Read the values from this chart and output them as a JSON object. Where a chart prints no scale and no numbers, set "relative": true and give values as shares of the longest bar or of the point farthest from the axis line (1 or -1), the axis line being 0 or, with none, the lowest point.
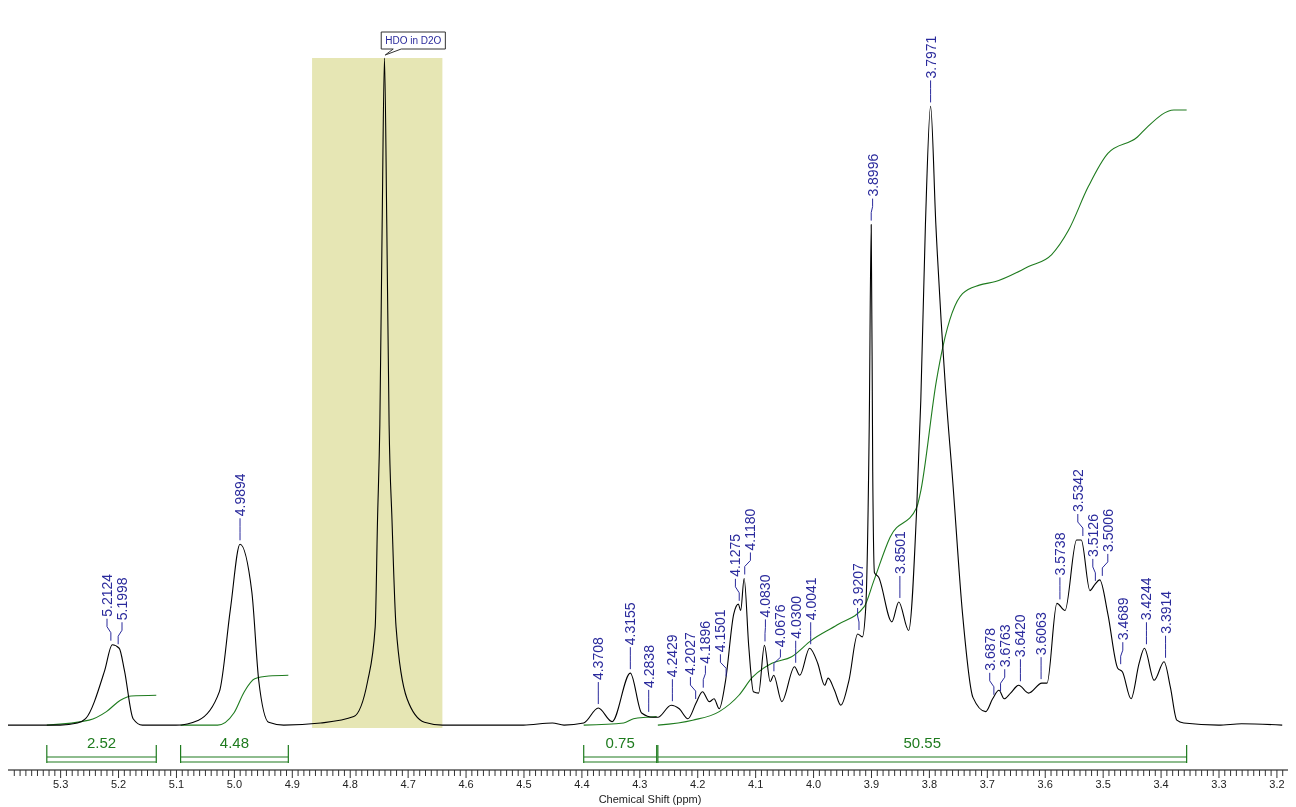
{
  "chart_data": {
    "type": "line",
    "relative": true,
    "xlabel": "Chemical Shift (ppm)",
    "xlim": [
      5.39,
      3.18
    ],
    "xticks": [
      {
        "value": 5.38,
        "label": null
      },
      {
        "value": 5.37,
        "label": null
      },
      {
        "value": 5.36,
        "label": null
      },
      {
        "value": 5.35,
        "label": null
      },
      {
        "value": 5.34,
        "label": null
      },
      {
        "value": 5.33,
        "label": null
      },
      {
        "value": 5.32,
        "label": null
      },
      {
        "value": 5.31,
        "label": null
      },
      5.3,
      {
        "value": 5.29,
        "label": null
      },
      {
        "value": 5.28,
        "label": null
      },
      {
        "value": 5.27,
        "label": null
      },
      {
        "value": 5.26,
        "label": null
      },
      {
        "value": 5.25,
        "label": null
      },
      {
        "value": 5.24,
        "label": null
      },
      {
        "value": 5.23,
        "label": null
      },
      {
        "value": 5.22,
        "label": null
      },
      {
        "value": 5.21,
        "label": null
      },
      5.2,
      {
        "value": 5.19,
        "label": null
      },
      {
        "value": 5.18,
        "label": null
      },
      {
        "value": 5.17,
        "label": null
      },
      {
        "value": 5.16,
        "label": null
      },
      {
        "value": 5.15,
        "label": null
      },
      {
        "value": 5.14,
        "label": null
      },
      {
        "value": 5.13,
        "label": null
      },
      {
        "value": 5.12,
        "label": null
      },
      {
        "value": 5.11,
        "label": null
      },
      5.1,
      {
        "value": 5.09,
        "label": null
      },
      {
        "value": 5.08,
        "label": null
      },
      {
        "value": 5.07,
        "label": null
      },
      {
        "value": 5.06,
        "label": null
      },
      {
        "value": 5.05,
        "label": null
      },
      {
        "value": 5.04,
        "label": null
      },
      {
        "value": 5.03,
        "label": null
      },
      {
        "value": 5.02,
        "label": null
      },
      {
        "value": 5.01,
        "label": null
      },
      {
        "value": 5.0,
        "label": "5.0"
      },
      {
        "value": 4.99,
        "label": null
      },
      {
        "value": 4.98,
        "label": null
      },
      {
        "value": 4.97,
        "label": null
      },
      {
        "value": 4.96,
        "label": null
      },
      {
        "value": 4.95,
        "label": null
      },
      {
        "value": 4.94,
        "label": null
      },
      {
        "value": 4.93,
        "label": null
      },
      {
        "value": 4.92,
        "label": null
      },
      {
        "value": 4.91,
        "label": null
      },
      4.9,
      {
        "value": 4.89,
        "label": null
      },
      {
        "value": 4.88,
        "label": null
      },
      {
        "value": 4.87,
        "label": null
      },
      {
        "value": 4.86,
        "label": null
      },
      {
        "value": 4.85,
        "label": null
      },
      {
        "value": 4.84,
        "label": null
      },
      {
        "value": 4.83,
        "label": null
      },
      {
        "value": 4.82,
        "label": null
      },
      {
        "value": 4.81,
        "label": null
      },
      4.8,
      {
        "value": 4.79,
        "label": null
      },
      {
        "value": 4.78,
        "label": null
      },
      {
        "value": 4.77,
        "label": null
      },
      {
        "value": 4.76,
        "label": null
      },
      {
        "value": 4.75,
        "label": null
      },
      {
        "value": 4.74,
        "label": null
      },
      {
        "value": 4.73,
        "label": null
      },
      {
        "value": 4.72,
        "label": null
      },
      {
        "value": 4.71,
        "label": null
      },
      4.7,
      {
        "value": 4.69,
        "label": null
      },
      {
        "value": 4.68,
        "label": null
      },
      {
        "value": 4.67,
        "label": null
      },
      {
        "value": 4.66,
        "label": null
      },
      {
        "value": 4.65,
        "label": null
      },
      {
        "value": 4.64,
        "label": null
      },
      {
        "value": 4.63,
        "label": null
      },
      {
        "value": 4.62,
        "label": null
      },
      {
        "value": 4.61,
        "label": null
      },
      4.6,
      {
        "value": 4.59,
        "label": null
      },
      {
        "value": 4.58,
        "label": null
      },
      {
        "value": 4.57,
        "label": null
      },
      {
        "value": 4.56,
        "label": null
      },
      {
        "value": 4.55,
        "label": null
      },
      {
        "value": 4.54,
        "label": null
      },
      {
        "value": 4.53,
        "label": null
      },
      {
        "value": 4.52,
        "label": null
      },
      {
        "value": 4.51,
        "label": null
      },
      4.5,
      {
        "value": 4.49,
        "label": null
      },
      {
        "value": 4.48,
        "label": null
      },
      {
        "value": 4.47,
        "label": null
      },
      {
        "value": 4.46,
        "label": null
      },
      {
        "value": 4.45,
        "label": null
      },
      {
        "value": 4.44,
        "label": null
      },
      {
        "value": 4.43,
        "label": null
      },
      {
        "value": 4.42,
        "label": null
      },
      {
        "value": 4.41,
        "label": null
      },
      4.4,
      {
        "value": 4.39,
        "label": null
      },
      {
        "value": 4.38,
        "label": null
      },
      {
        "value": 4.37,
        "label": null
      },
      {
        "value": 4.36,
        "label": null
      },
      {
        "value": 4.35,
        "label": null
      },
      {
        "value": 4.34,
        "label": null
      },
      {
        "value": 4.33,
        "label": null
      },
      {
        "value": 4.32,
        "label": null
      },
      {
        "value": 4.31,
        "label": null
      },
      4.3,
      {
        "value": 4.29,
        "label": null
      },
      {
        "value": 4.28,
        "label": null
      },
      {
        "value": 4.27,
        "label": null
      },
      {
        "value": 4.26,
        "label": null
      },
      {
        "value": 4.25,
        "label": null
      },
      {
        "value": 4.24,
        "label": null
      },
      {
        "value": 4.23,
        "label": null
      },
      {
        "value": 4.22,
        "label": null
      },
      {
        "value": 4.21,
        "label": null
      },
      4.2,
      {
        "value": 4.19,
        "label": null
      },
      {
        "value": 4.18,
        "label": null
      },
      {
        "value": 4.17,
        "label": null
      },
      {
        "value": 4.16,
        "label": null
      },
      {
        "value": 4.15,
        "label": null
      },
      {
        "value": 4.14,
        "label": null
      },
      {
        "value": 4.13,
        "label": null
      },
      {
        "value": 4.12,
        "label": null
      },
      {
        "value": 4.11,
        "label": null
      },
      4.1,
      {
        "value": 4.09,
        "label": null
      },
      {
        "value": 4.08,
        "label": null
      },
      {
        "value": 4.07,
        "label": null
      },
      {
        "value": 4.06,
        "label": null
      },
      {
        "value": 4.05,
        "label": null
      },
      {
        "value": 4.04,
        "label": null
      },
      {
        "value": 4.03,
        "label": null
      },
      {
        "value": 4.02,
        "label": null
      },
      {
        "value": 4.01,
        "label": null
      },
      {
        "value": 4.0,
        "label": "4.0"
      },
      {
        "value": 3.99,
        "label": null
      },
      {
        "value": 3.98,
        "label": null
      },
      {
        "value": 3.97,
        "label": null
      },
      {
        "value": 3.96,
        "label": null
      },
      {
        "value": 3.95,
        "label": null
      },
      {
        "value": 3.94,
        "label": null
      },
      {
        "value": 3.93,
        "label": null
      },
      {
        "value": 3.92,
        "label": null
      },
      {
        "value": 3.91,
        "label": null
      },
      3.9,
      {
        "value": 3.89,
        "label": null
      },
      {
        "value": 3.88,
        "label": null
      },
      {
        "value": 3.87,
        "label": null
      },
      {
        "value": 3.86,
        "label": null
      },
      {
        "value": 3.85,
        "label": null
      },
      {
        "value": 3.84,
        "label": null
      },
      {
        "value": 3.83,
        "label": null
      },
      {
        "value": 3.82,
        "label": null
      },
      {
        "value": 3.81,
        "label": null
      },
      3.8,
      {
        "value": 3.79,
        "label": null
      },
      {
        "value": 3.78,
        "label": null
      },
      {
        "value": 3.77,
        "label": null
      },
      {
        "value": 3.76,
        "label": null
      },
      {
        "value": 3.75,
        "label": null
      },
      {
        "value": 3.74,
        "label": null
      },
      {
        "value": 3.73,
        "label": null
      },
      {
        "value": 3.72,
        "label": null
      },
      {
        "value": 3.71,
        "label": null
      },
      3.7,
      {
        "value": 3.69,
        "label": null
      },
      {
        "value": 3.68,
        "label": null
      },
      {
        "value": 3.67,
        "label": null
      },
      {
        "value": 3.66,
        "label": null
      },
      {
        "value": 3.65,
        "label": null
      },
      {
        "value": 3.64,
        "label": null
      },
      {
        "value": 3.63,
        "label": null
      },
      {
        "value": 3.62,
        "label": null
      },
      {
        "value": 3.61,
        "label": null
      },
      3.6,
      {
        "value": 3.59,
        "label": null
      },
      {
        "value": 3.58,
        "label": null
      },
      {
        "value": 3.57,
        "label": null
      },
      {
        "value": 3.56,
        "label": null
      },
      {
        "value": 3.55,
        "label": null
      },
      {
        "value": 3.54,
        "label": null
      },
      {
        "value": 3.53,
        "label": null
      },
      {
        "value": 3.52,
        "label": null
      },
      {
        "value": 3.51,
        "label": null
      },
      3.5,
      {
        "value": 3.49,
        "label": null
      },
      {
        "value": 3.48,
        "label": null
      },
      {
        "value": 3.47,
        "label": null
      },
      {
        "value": 3.46,
        "label": null
      },
      {
        "value": 3.45,
        "label": null
      },
      {
        "value": 3.44,
        "label": null
      },
      {
        "value": 3.43,
        "label": null
      },
      {
        "value": 3.42,
        "label": null
      },
      {
        "value": 3.41,
        "label": null
      },
      3.4,
      {
        "value": 3.39,
        "label": null
      },
      {
        "value": 3.38,
        "label": null
      },
      {
        "value": 3.37,
        "label": null
      },
      {
        "value": 3.36,
        "label": null
      },
      {
        "value": 3.35,
        "label": null
      },
      {
        "value": 3.34,
        "label": null
      },
      {
        "value": 3.33,
        "label": null
      },
      {
        "value": 3.32,
        "label": null
      },
      {
        "value": 3.31,
        "label": null
      },
      3.3,
      {
        "value": 3.29,
        "label": null
      },
      {
        "value": 3.28,
        "label": null
      },
      {
        "value": 3.27,
        "label": null
      },
      {
        "value": 3.26,
        "label": null
      },
      {
        "value": 3.25,
        "label": null
      },
      {
        "value": 3.24,
        "label": null
      },
      {
        "value": 3.23,
        "label": null
      },
      {
        "value": 3.22,
        "label": null
      },
      {
        "value": 3.21,
        "label": null
      },
      3.2,
      {
        "value": 3.19,
        "label": null
      }
    ],
    "series": [
      {
        "color": "#000000",
        "x": [
          5.39,
          5.3,
          5.27,
          5.256,
          5.223,
          5.21,
          5.198,
          5.189,
          5.174,
          5.158,
          5.1,
          5.061,
          5.025,
          5.006,
          4.9894,
          4.969,
          4.957,
          4.94,
          4.914,
          4.85,
          4.793,
          4.769,
          4.756,
          4.752,
          4.748,
          4.744,
          4.74,
          4.736,
          4.732,
          4.727,
          4.72,
          4.701,
          4.671,
          4.64,
          4.5,
          4.45,
          4.43,
          4.396,
          4.3708,
          4.347,
          4.3155,
          4.296,
          4.276,
          4.268,
          4.245,
          4.231,
          4.216,
          4.202,
          4.191,
          4.179,
          4.171,
          4.162,
          4.151,
          4.137,
          4.129,
          4.125,
          4.119,
          4.111,
          4.103,
          4.094,
          4.084,
          4.074,
          4.068,
          4.054,
          4.032,
          4.023,
          4.006,
          3.992,
          3.98,
          3.974,
          3.963,
          3.952,
          3.938,
          3.923,
          3.915,
          3.909,
          3.903,
          3.8996,
          3.897,
          3.894,
          3.887,
          3.864,
          3.852,
          3.835,
          3.821,
          3.814,
          3.806,
          3.7971,
          3.788,
          3.771,
          3.759,
          3.742,
          3.724,
          3.702,
          3.69,
          3.679,
          3.67,
          3.659,
          3.645,
          3.628,
          3.605,
          3.596,
          3.579,
          3.565,
          3.545,
          3.537,
          3.522,
          3.514,
          3.505,
          3.491,
          3.474,
          3.466,
          3.451,
          3.437,
          3.428,
          3.411,
          3.394,
          3.383,
          3.372,
          3.36,
          3.3,
          3.26,
          3.19
        ],
        "values": [
          0.063,
          0.063,
          0.066,
          0.072,
          0.14,
          0.176,
          0.171,
          0.14,
          0.072,
          0.063,
          0.063,
          0.07,
          0.11,
          0.226,
          0.317,
          0.25,
          0.125,
          0.067,
          0.063,
          0.066,
          0.075,
          0.125,
          0.201,
          0.351,
          0.485,
          0.766,
          1,
          0.766,
          0.485,
          0.351,
          0.201,
          0.1,
          0.067,
          0.063,
          0.063,
          0.066,
          0.063,
          0.066,
          0.087,
          0.068,
          0.136,
          0.08,
          0.074,
          0.074,
          0.091,
          0.086,
          0.072,
          0.094,
          0.11,
          0.096,
          0.1,
          0.086,
          0.126,
          0.219,
          0.233,
          0.224,
          0.269,
          0.173,
          0.11,
          0.108,
          0.175,
          0.124,
          0.133,
          0.096,
          0.145,
          0.133,
          0.171,
          0.15,
          0.119,
          0.129,
          0.112,
          0.091,
          0.126,
          0.191,
          0.187,
          0.229,
          0.485,
          0.766,
          0.419,
          0.277,
          0.271,
          0.208,
          0.236,
          0.196,
          0.369,
          0.519,
          0.766,
          0.932,
          0.766,
          0.532,
          0.407,
          0.22,
          0.102,
          0.082,
          0.1,
          0.112,
          0.1,
          0.108,
          0.119,
          0.108,
          0.122,
          0.122,
          0.234,
          0.224,
          0.323,
          0.323,
          0.252,
          0.26,
          0.267,
          0.219,
          0.143,
          0.138,
          0.1,
          0.15,
          0.171,
          0.126,
          0.152,
          0.116,
          0.07,
          0.066,
          0.063,
          0.065,
          0.063
        ]
      },
      {
        "color": "#1e7b1e",
        "x": [
          5.323,
          5.25,
          5.22,
          5.196,
          5.177,
          5.134,
          5.11,
          5.092,
          5.028,
          5.0,
          4.982,
          4.964,
          4.94,
          4.906,
          4.6,
          4.396,
          4.327,
          4.31,
          4.288,
          4.27,
          4.269,
          4.268,
          4.208,
          4.162,
          4.128,
          4.105,
          4.071,
          4.037,
          4.003,
          3.958,
          3.912,
          3.895,
          3.867,
          3.821,
          3.815,
          3.787,
          3.776,
          3.742,
          3.713,
          3.685,
          3.628,
          3.588,
          3.559,
          3.525,
          3.491,
          3.44,
          3.423,
          3.377,
          3.355
        ],
        "values": [
          0.063,
          0.07,
          0.082,
          0.098,
          0.104,
          0.105,
          null,
          0.063,
          0.063,
          0.08,
          0.11,
          0.128,
          0.132,
          0.133,
          null,
          0.063,
          0.066,
          0.072,
          0.074,
          0.075,
          null,
          0.063,
          0.07,
          0.082,
          0.105,
          0.13,
          0.15,
          0.159,
          0.182,
          0.204,
          0.229,
          0.266,
          0.327,
          0.369,
          0.388,
          0.547,
          0.594,
          0.669,
          0.681,
          0.686,
          0.707,
          0.724,
          0.758,
          0.819,
          0.866,
          0.889,
          0.903,
          0.927,
          0.927
        ]
      }
    ],
    "bands": [
      {
        "axis": "x",
        "from": 4.865,
        "to": 4.64,
        "label": "HDO in D2O",
        "color": "#e6e6b4"
      }
    ],
    "annotations": [
      {
        "text": "5.2124",
        "x": 5.2124,
        "y": 0.176
      },
      {
        "text": "5.1998",
        "x": 5.1998,
        "y": 0.171
      },
      {
        "text": "4.9894",
        "x": 4.9894,
        "y": 0.317
      },
      {
        "text": "4.3708",
        "x": 4.3708,
        "y": 0.087
      },
      {
        "text": "4.3155",
        "x": 4.3155,
        "y": 0.136
      },
      {
        "text": "4.2838",
        "x": 4.2838,
        "y": 0.076
      },
      {
        "text": "4.2429",
        "x": 4.2429,
        "y": 0.091
      },
      {
        "text": "4.2027",
        "x": 4.2027,
        "y": 0.094
      },
      {
        "text": "4.1896",
        "x": 4.1896,
        "y": 0.11
      },
      {
        "text": "4.1501",
        "x": 4.1501,
        "y": 0.126
      },
      {
        "text": "4.1275",
        "x": 4.1275,
        "y": 0.232
      },
      {
        "text": "4.1180",
        "x": 4.118,
        "y": 0.269
      },
      {
        "text": "4.0830",
        "x": 4.083,
        "y": 0.175
      },
      {
        "text": "4.0676",
        "x": 4.0676,
        "y": 0.133
      },
      {
        "text": "4.0300",
        "x": 4.03,
        "y": 0.145
      },
      {
        "text": "4.0041",
        "x": 4.0041,
        "y": 0.171
      },
      {
        "text": "3.9207",
        "x": 3.9207,
        "y": 0.191
      },
      {
        "text": "3.8996",
        "x": 3.8996,
        "y": 0.766
      },
      {
        "text": "3.8501",
        "x": 3.8501,
        "y": 0.236
      },
      {
        "text": "3.7971",
        "x": 3.7971,
        "y": 0.932
      },
      {
        "text": "3.6878",
        "x": 3.6878,
        "y": 0.1
      },
      {
        "text": "3.6763",
        "x": 3.6763,
        "y": 0.105
      },
      {
        "text": "3.6420",
        "x": 3.642,
        "y": 0.119
      },
      {
        "text": "3.6063",
        "x": 3.6063,
        "y": 0.122
      },
      {
        "text": "3.5738",
        "x": 3.5738,
        "y": 0.234
      },
      {
        "text": "3.5342",
        "x": 3.5342,
        "y": 0.323
      },
      {
        "text": "3.5126",
        "x": 3.5126,
        "y": 0.26
      },
      {
        "text": "3.5006",
        "x": 3.5006,
        "y": 0.267
      },
      {
        "text": "3.4689",
        "x": 3.4689,
        "y": 0.143
      },
      {
        "text": "3.4244",
        "x": 3.4244,
        "y": 0.171
      },
      {
        "text": "3.3914",
        "x": 3.3914,
        "y": 0.152
      },
      "2.52",
      "4.48",
      "0.75",
      "50.55"
    ]
  }
}
